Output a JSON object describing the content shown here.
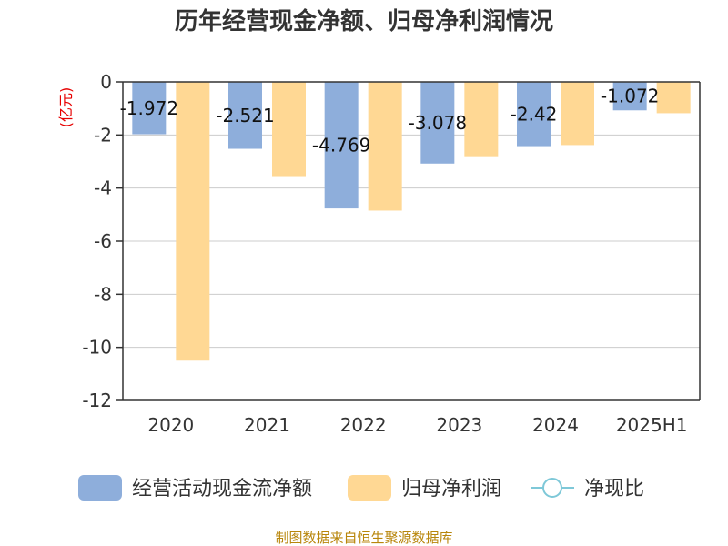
{
  "chart_data": {
    "type": "bar",
    "title": "历年经营现金净额、归母净利润情况",
    "ylabel": "(亿元)",
    "xlabel": "",
    "categories": [
      "2020",
      "2021",
      "2022",
      "2023",
      "2024",
      "2025H1"
    ],
    "ylim": [
      -12,
      0
    ],
    "yticks": [
      0,
      -2,
      -4,
      -6,
      -8,
      -10,
      -12
    ],
    "series": [
      {
        "name": "经营活动现金流净额",
        "color": "#8eaedb",
        "values": [
          -1.972,
          -2.521,
          -4.769,
          -3.078,
          -2.42,
          -1.072
        ],
        "data_labels": [
          "-1.972",
          "-2.521",
          "-4.769",
          "-3.078",
          "-2.42",
          "-1.072"
        ]
      },
      {
        "name": "归母净利润",
        "color": "#ffd894",
        "values": [
          -10.5,
          -3.55,
          -4.85,
          -2.8,
          -2.38,
          -1.18
        ]
      }
    ],
    "line_series": {
      "name": "净现比",
      "color": "#7ec8d8"
    },
    "grid": true,
    "legend": "bottom-center"
  },
  "source_text": "制图数据来自恒生聚源数据库"
}
